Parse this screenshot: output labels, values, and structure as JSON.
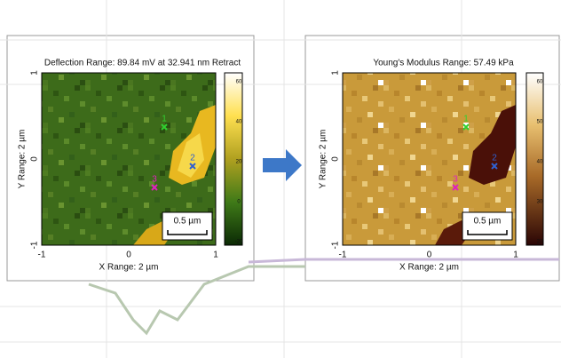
{
  "panels": [
    {
      "title": "Deflection Range:  89.84 mV at 32.941 nm Retract",
      "x_label": "X Range: 2 µm",
      "y_label": "Y Range: 2 µm",
      "x_ticks": [
        "-1",
        "0",
        "1"
      ],
      "y_ticks": [
        "1",
        "0",
        "-1"
      ],
      "colorbar_ticks": [
        "60",
        "40",
        "20",
        "0",
        "-20"
      ],
      "scale_bar": "0.5 µm",
      "markers": [
        "1",
        "2",
        "3"
      ]
    },
    {
      "title": "Young's Modulus Range:  57.49 kPa",
      "x_label": "X Range: 2 µm",
      "y_label": "Y Range: 2 µm",
      "x_ticks": [
        "-1",
        "0",
        "1"
      ],
      "y_ticks": [
        "1",
        "0",
        "-1"
      ],
      "colorbar_ticks": [
        "60",
        "50",
        "40",
        "30",
        "20"
      ],
      "scale_bar": "0.5 µm",
      "markers": [
        "1",
        "2",
        "3"
      ]
    }
  ]
}
